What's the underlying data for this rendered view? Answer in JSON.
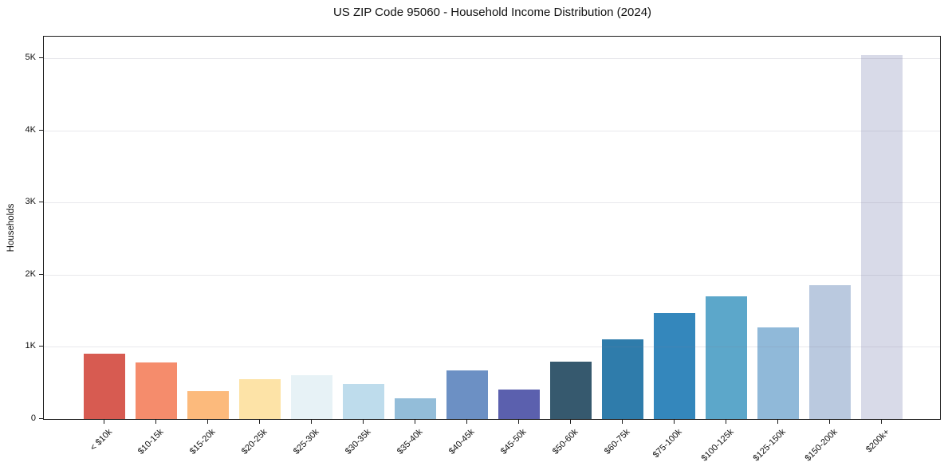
{
  "chart_data": {
    "type": "bar",
    "title": "US ZIP Code 95060 - Household Income Distribution (2024)",
    "xlabel": "",
    "ylabel": "Households",
    "categories": [
      "< $10k",
      "$10-15k",
      "$15-20k",
      "$20-25k",
      "$25-30k",
      "$30-35k",
      "$35-40k",
      "$40-45k",
      "$45-50k",
      "$50-60k",
      "$60-75k",
      "$75-100k",
      "$100-125k",
      "$125-150k",
      "$150-200k",
      "$200k+"
    ],
    "values": [
      910,
      780,
      390,
      550,
      605,
      490,
      290,
      675,
      410,
      795,
      1100,
      1465,
      1700,
      1270,
      1855,
      5050
    ],
    "bar_colors": [
      "#d75b51",
      "#f58c6c",
      "#fcba7c",
      "#fde3a7",
      "#e7f2f6",
      "#bedcec",
      "#93bdd9",
      "#6c90c4",
      "#5b60ae",
      "#36596e",
      "#2f7cab",
      "#3487bc",
      "#5ca7ca",
      "#90b9d9",
      "#bac9df",
      "#d8dae8"
    ],
    "ylim": [
      0,
      5300
    ],
    "ytick_values": [
      0,
      1000,
      2000,
      3000,
      4000,
      5000
    ],
    "ytick_labels": [
      "0",
      "1K",
      "2K",
      "3K",
      "4K",
      "5K"
    ],
    "grid": "horizontal gridlines on",
    "legend": "none",
    "x_tick_rotation_deg": 45
  }
}
